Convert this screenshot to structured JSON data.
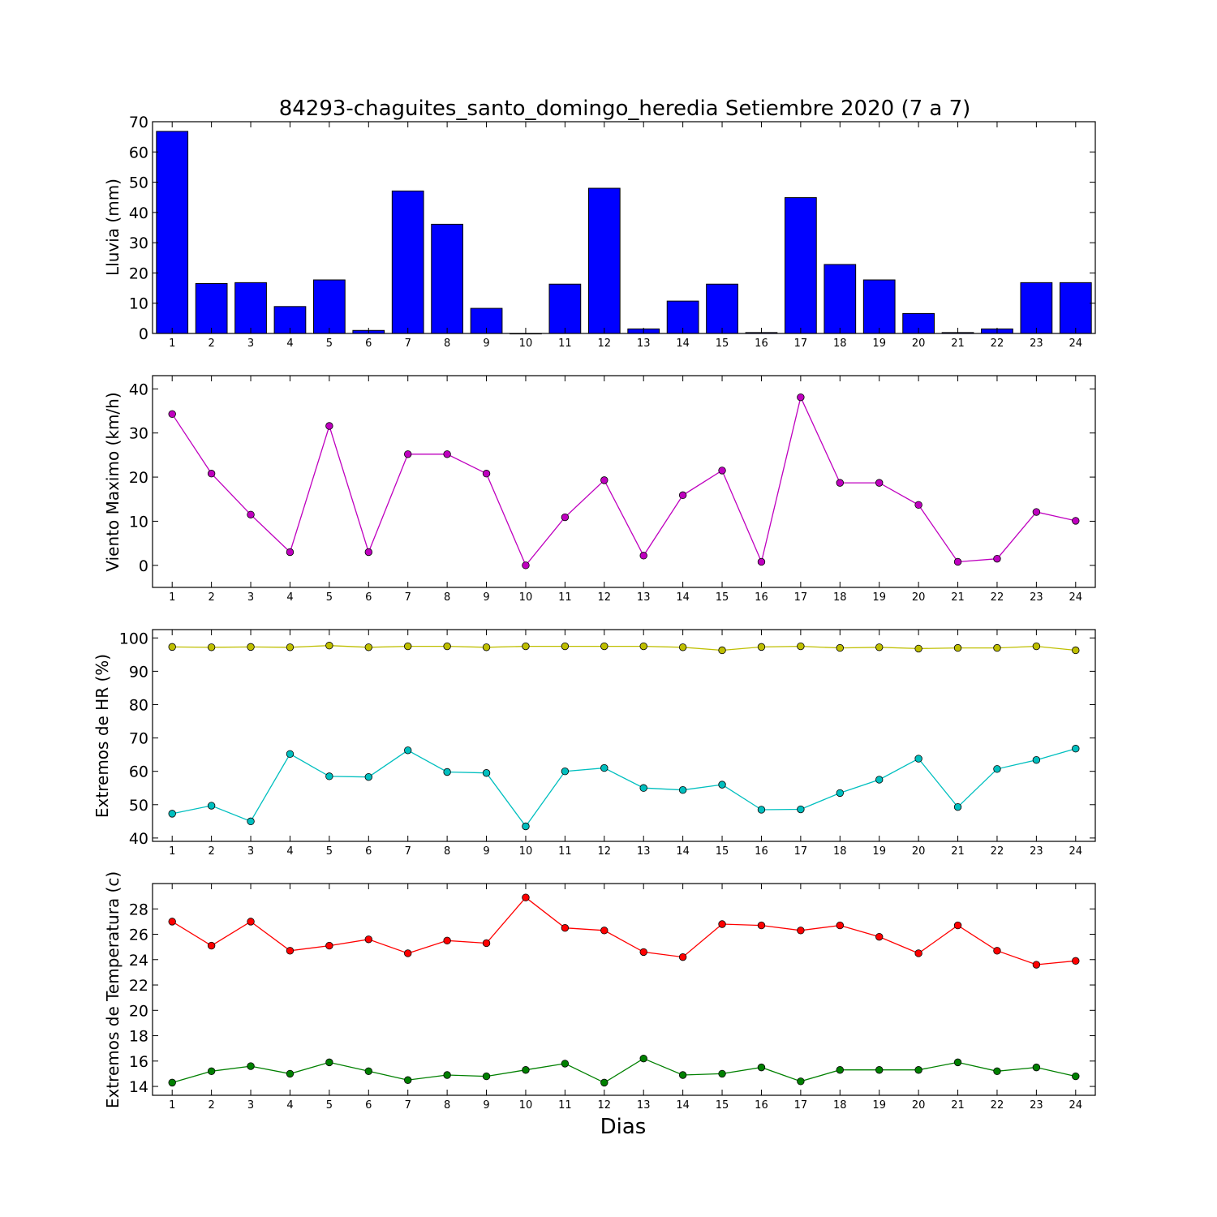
{
  "title": "84293-chaguites_santo_domingo_heredia Setiembre 2020  (7 a 7)",
  "xlabel": "Dias",
  "colors": {
    "lluvia": "#0000ff",
    "viento": "#bf00bf",
    "hr_max": "#bfbf00",
    "hr_min": "#00bfbf",
    "temp_max": "#ff0000",
    "temp_min": "#008000"
  },
  "chart_data": [
    {
      "type": "bar",
      "ylabel": "Lluvia (mm)",
      "categories": [
        1,
        2,
        3,
        4,
        5,
        6,
        7,
        8,
        9,
        10,
        11,
        12,
        13,
        14,
        15,
        16,
        17,
        18,
        19,
        20,
        21,
        22,
        23,
        24
      ],
      "values": [
        66.8,
        16.5,
        16.8,
        8.9,
        17.7,
        1.0,
        47.1,
        36.1,
        8.3,
        0.0,
        16.3,
        48.0,
        1.5,
        10.7,
        16.3,
        0.3,
        44.9,
        22.8,
        17.7,
        6.6,
        0.3,
        1.5,
        16.8,
        16.8
      ],
      "ylim": [
        0,
        70
      ],
      "yticks": [
        0,
        10,
        20,
        30,
        40,
        50,
        60,
        70
      ]
    },
    {
      "type": "line",
      "ylabel": "Viento Maximo (km/h)",
      "x": [
        1,
        2,
        3,
        4,
        5,
        6,
        7,
        8,
        9,
        10,
        11,
        12,
        13,
        14,
        15,
        16,
        17,
        18,
        19,
        20,
        21,
        22,
        23,
        24
      ],
      "values": [
        34.3,
        20.8,
        11.5,
        3.0,
        31.6,
        3.0,
        25.2,
        25.2,
        20.8,
        0.0,
        10.9,
        19.3,
        2.2,
        15.9,
        21.5,
        0.8,
        38.1,
        18.7,
        18.7,
        13.7,
        0.8,
        1.5,
        12.1,
        10.1
      ],
      "ylim": [
        -5,
        43
      ],
      "yticks": [
        0,
        10,
        20,
        30,
        40
      ]
    },
    {
      "type": "line",
      "ylabel": "Extremos de HR (%)",
      "x": [
        1,
        2,
        3,
        4,
        5,
        6,
        7,
        8,
        9,
        10,
        11,
        12,
        13,
        14,
        15,
        16,
        17,
        18,
        19,
        20,
        21,
        22,
        23,
        24
      ],
      "series": [
        {
          "values": [
            97.3,
            97.2,
            97.3,
            97.2,
            97.7,
            97.2,
            97.5,
            97.5,
            97.2,
            97.5,
            97.5,
            97.5,
            97.5,
            97.2,
            96.3,
            97.3,
            97.5,
            97.0,
            97.2,
            96.8,
            97.0,
            97.0,
            97.5,
            96.3
          ]
        },
        {
          "values": [
            47.3,
            49.7,
            45.0,
            65.2,
            58.5,
            58.3,
            66.3,
            59.8,
            59.5,
            43.5,
            60.0,
            61.0,
            55.0,
            54.4,
            56.0,
            48.5,
            48.6,
            53.5,
            57.5,
            63.8,
            49.3,
            60.7,
            63.4,
            66.8
          ]
        }
      ],
      "ylim": [
        39,
        102.5
      ],
      "yticks": [
        40,
        50,
        60,
        70,
        80,
        90,
        100
      ]
    },
    {
      "type": "line",
      "ylabel": "Extremos de Temperatura (c)",
      "x": [
        1,
        2,
        3,
        4,
        5,
        6,
        7,
        8,
        9,
        10,
        11,
        12,
        13,
        14,
        15,
        16,
        17,
        18,
        19,
        20,
        21,
        22,
        23,
        24
      ],
      "series": [
        {
          "values": [
            27.0,
            25.1,
            27.0,
            24.7,
            25.1,
            25.6,
            24.5,
            25.5,
            25.3,
            28.9,
            26.5,
            26.3,
            24.6,
            24.2,
            26.8,
            26.7,
            26.3,
            26.7,
            25.8,
            24.5,
            26.7,
            24.7,
            23.6,
            23.9
          ]
        },
        {
          "values": [
            14.3,
            15.2,
            15.6,
            15.0,
            15.9,
            15.2,
            14.5,
            14.9,
            14.8,
            15.3,
            15.8,
            14.3,
            16.2,
            14.9,
            15.0,
            15.5,
            14.4,
            15.3,
            15.3,
            15.3,
            15.9,
            15.2,
            15.5,
            14.8
          ]
        }
      ],
      "ylim": [
        13.3,
        30.0
      ],
      "yticks": [
        14,
        16,
        18,
        20,
        22,
        24,
        26,
        28
      ]
    }
  ]
}
